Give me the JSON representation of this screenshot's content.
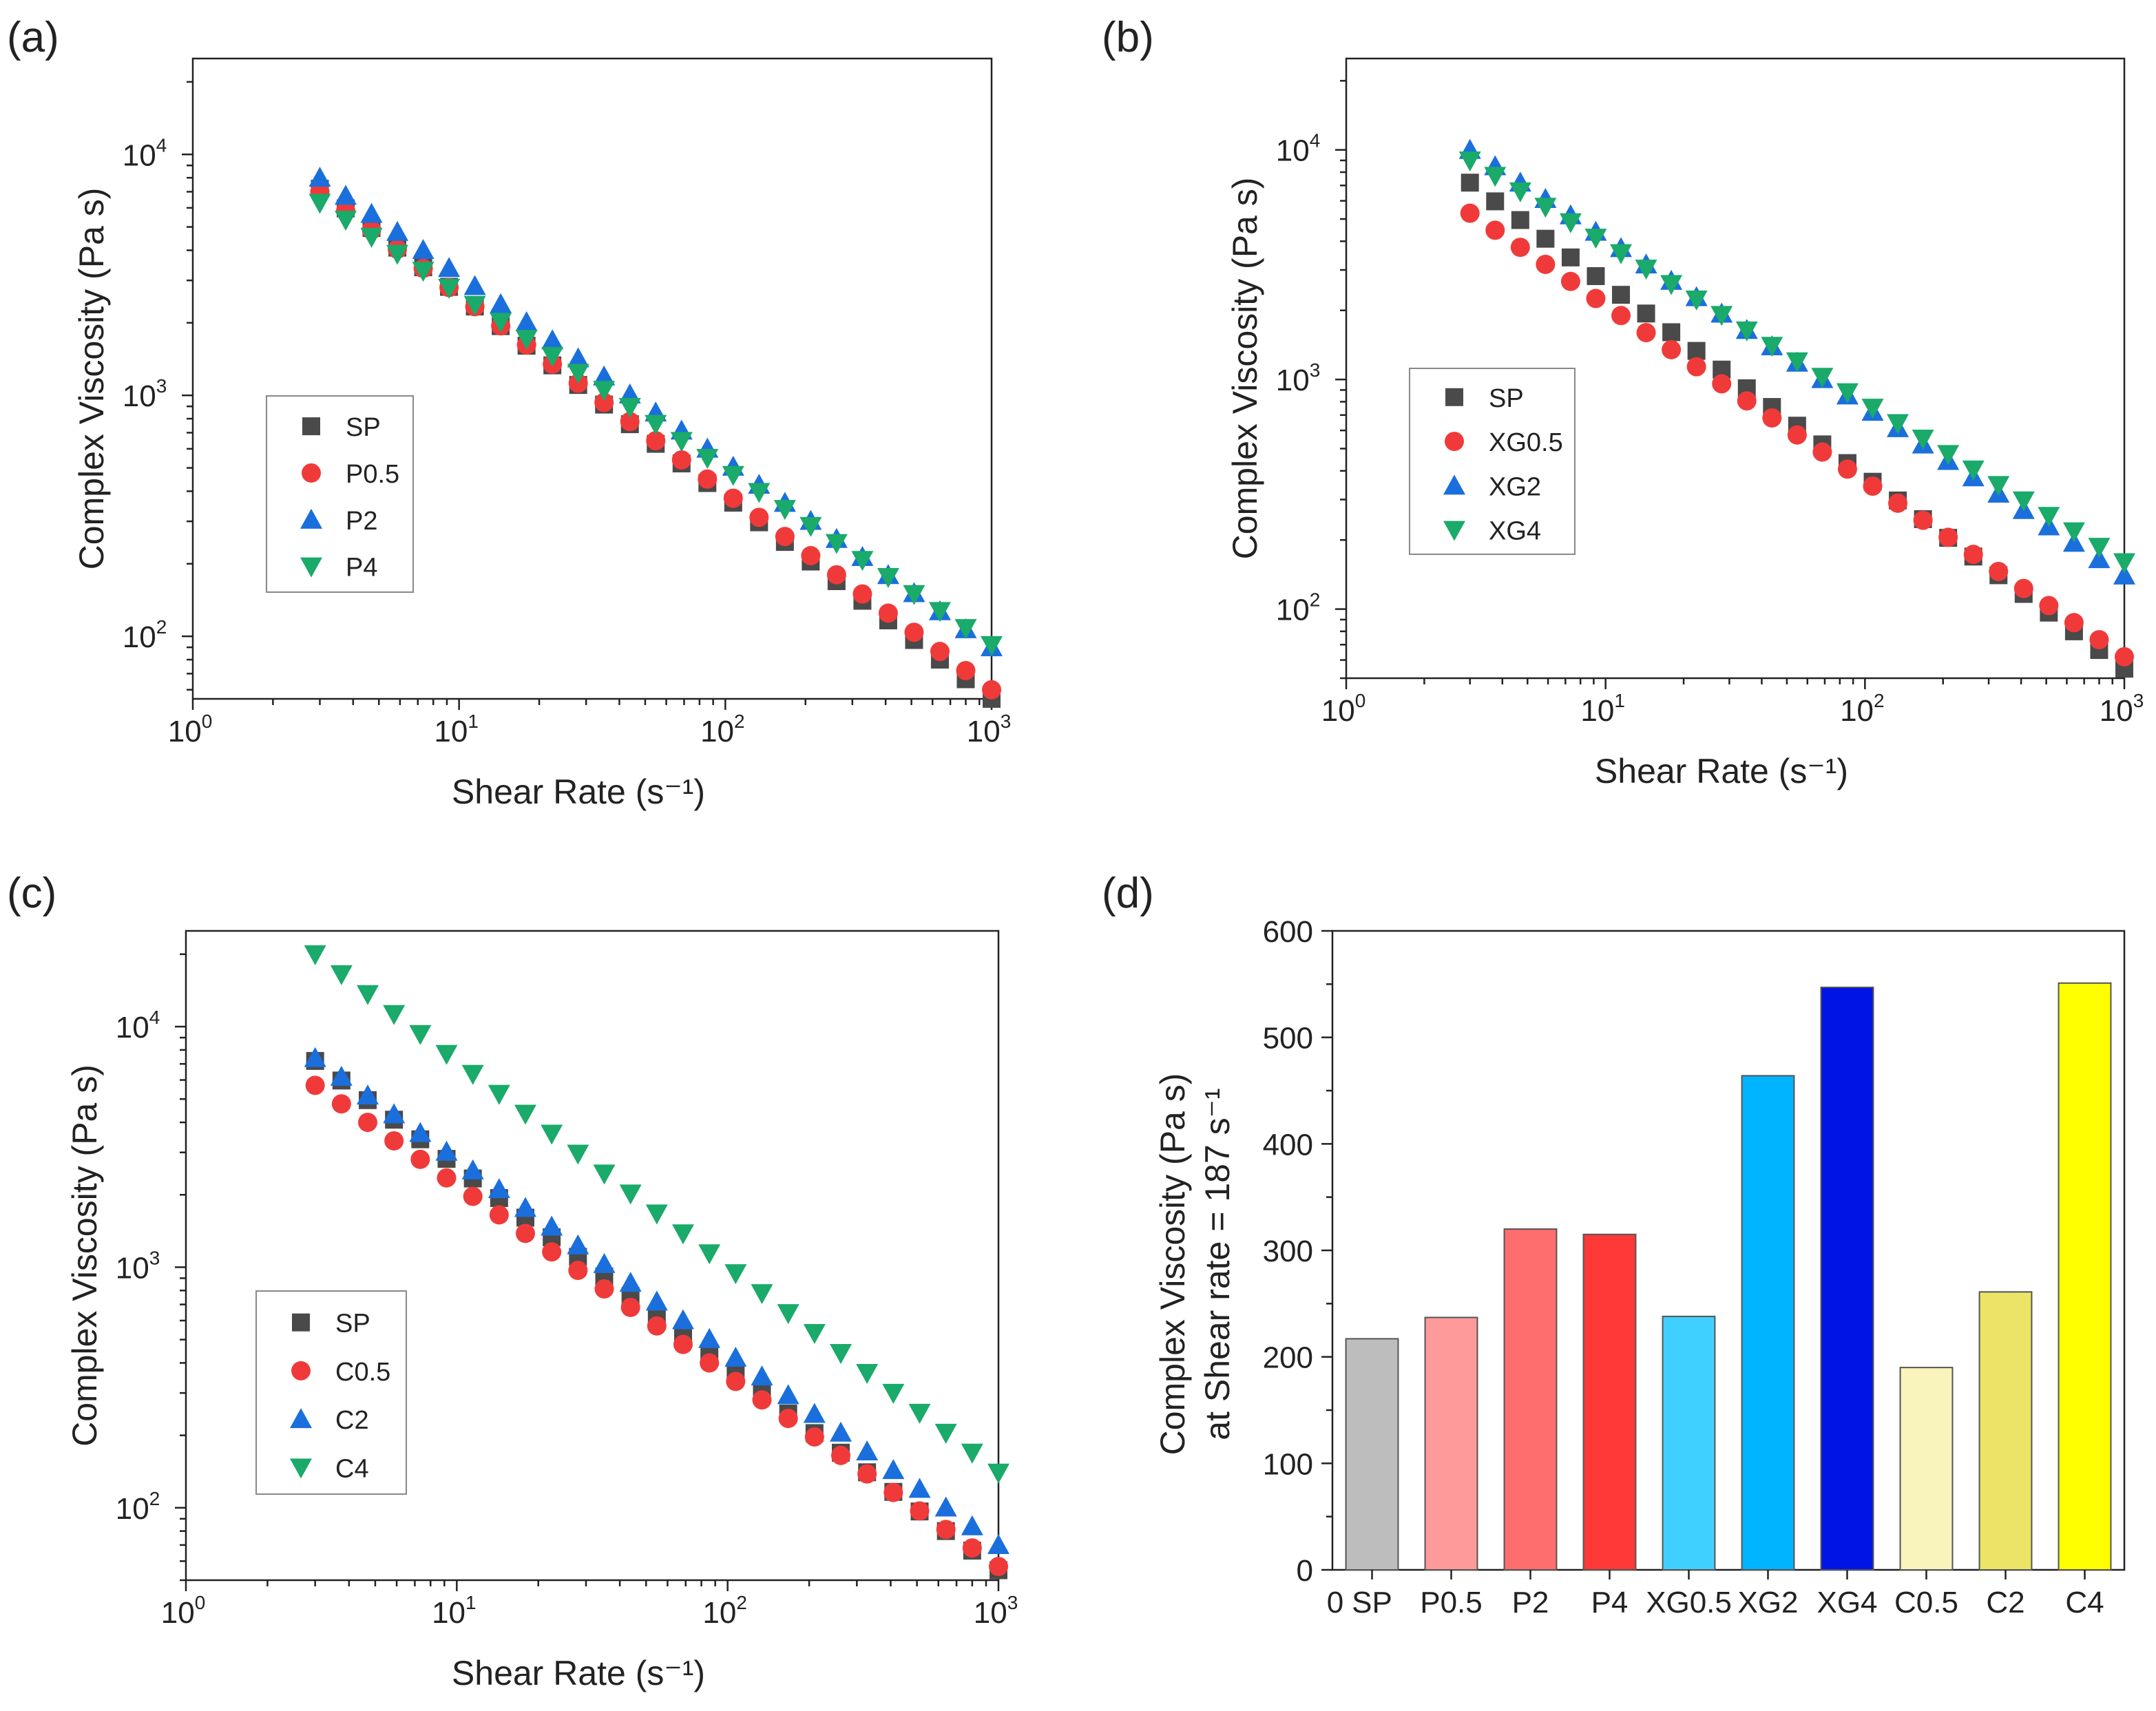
{
  "colors": {
    "SP": "#4a4a4a",
    "red": "#f03a3a",
    "blue": "#1a6fdc",
    "green": "#1aaa6a"
  },
  "chart_data": [
    {
      "panel": "(a)",
      "type": "scatter",
      "xscale": "log",
      "yscale": "log",
      "xlim": [
        1,
        1000
      ],
      "ylim": [
        55,
        25000
      ],
      "xlabel": "Shear Rate (s⁻¹)",
      "ylabel": "Complex Viscosity (Pa s)",
      "xticks": [
        {
          "base": "10",
          "exp": "0",
          "value": 1
        },
        {
          "base": "10",
          "exp": "1",
          "value": 10
        },
        {
          "base": "10",
          "exp": "2",
          "value": 100
        },
        {
          "base": "10",
          "exp": "3",
          "value": 1000
        }
      ],
      "yticks": [
        {
          "base": "10",
          "exp": "2",
          "value": 100
        },
        {
          "base": "10",
          "exp": "3",
          "value": 1000
        },
        {
          "base": "10",
          "exp": "4",
          "value": 10000
        }
      ],
      "legend_position": "center-left",
      "series": [
        {
          "name": "SP",
          "marker": "square",
          "color": "#4a4a4a",
          "v3": 7200,
          "v1000": 55
        },
        {
          "name": "P0.5",
          "marker": "circle",
          "color": "#f03a3a",
          "v3": 7000,
          "v1000": 60
        },
        {
          "name": "P2",
          "marker": "triangle-up",
          "color": "#1a6fdc",
          "v3": 8000,
          "v1000": 90
        },
        {
          "name": "P4",
          "marker": "triangle-down",
          "color": "#1aaa6a",
          "v3": 6300,
          "v1000": 92
        }
      ]
    },
    {
      "panel": "(b)",
      "type": "scatter",
      "xscale": "log",
      "yscale": "log",
      "xlim": [
        1,
        1000
      ],
      "ylim": [
        50,
        25000
      ],
      "xlabel": "Shear Rate (s⁻¹)",
      "ylabel": "Complex Viscosity (Pa s)",
      "xticks": [
        {
          "base": "10",
          "exp": "0",
          "value": 1
        },
        {
          "base": "10",
          "exp": "1",
          "value": 10
        },
        {
          "base": "10",
          "exp": "2",
          "value": 100
        },
        {
          "base": "10",
          "exp": "3",
          "value": 1000
        }
      ],
      "yticks": [
        {
          "base": "10",
          "exp": "2",
          "value": 100
        },
        {
          "base": "10",
          "exp": "3",
          "value": 1000
        },
        {
          "base": "10",
          "exp": "4",
          "value": 10000
        }
      ],
      "legend_position": "center-left",
      "series": [
        {
          "name": "SP",
          "marker": "square",
          "color": "#4a4a4a",
          "v3": 7200,
          "v1000": 55
        },
        {
          "name": "XG0.5",
          "marker": "circle",
          "color": "#f03a3a",
          "v3": 5300,
          "v1000": 62
        },
        {
          "name": "XG2",
          "marker": "triangle-up",
          "color": "#1a6fdc",
          "v3": 10000,
          "v1000": 140
        },
        {
          "name": "XG4",
          "marker": "triangle-down",
          "color": "#1aaa6a",
          "v3": 9000,
          "v1000": 160
        }
      ]
    },
    {
      "panel": "(c)",
      "type": "scatter",
      "xscale": "log",
      "yscale": "log",
      "xlim": [
        1,
        1000
      ],
      "ylim": [
        50,
        25000
      ],
      "xlabel": "Shear Rate (s⁻¹)",
      "ylabel": "Complex Viscosity (Pa s)",
      "xticks": [
        {
          "base": "10",
          "exp": "0",
          "value": 1
        },
        {
          "base": "10",
          "exp": "1",
          "value": 10
        },
        {
          "base": "10",
          "exp": "2",
          "value": 100
        },
        {
          "base": "10",
          "exp": "3",
          "value": 1000
        }
      ],
      "yticks": [
        {
          "base": "10",
          "exp": "2",
          "value": 100
        },
        {
          "base": "10",
          "exp": "3",
          "value": 1000
        },
        {
          "base": "10",
          "exp": "4",
          "value": 10000
        }
      ],
      "legend_position": "center-left",
      "series": [
        {
          "name": "SP",
          "marker": "square",
          "color": "#4a4a4a",
          "v3": 7200,
          "v1000": 55
        },
        {
          "name": "C0.5",
          "marker": "circle",
          "color": "#f03a3a",
          "v3": 5700,
          "v1000": 57
        },
        {
          "name": "C2",
          "marker": "triangle-up",
          "color": "#1a6fdc",
          "v3": 7400,
          "v1000": 70
        },
        {
          "name": "C4",
          "marker": "triangle-down",
          "color": "#1aaa6a",
          "v3": 20000,
          "v1000": 140
        }
      ]
    },
    {
      "panel": "(d)",
      "type": "bar",
      "ylim": [
        0,
        600
      ],
      "yticks": [
        0,
        100,
        200,
        300,
        400,
        500,
        600
      ],
      "ylabel": "Complex Viscosity (Pa s)",
      "ylabel2": "at Shear rate = 187 s⁻¹",
      "xlabel": "",
      "zero_label": "0",
      "categories": [
        "SP",
        "P0.5",
        "P2",
        "P4",
        "XG0.5",
        "XG2",
        "XG4",
        "C0.5",
        "C2",
        "C4"
      ],
      "values": [
        217,
        237,
        320,
        315,
        238,
        464,
        547,
        190,
        261,
        551
      ],
      "colors": [
        "#bdbdbd",
        "#ff9a9a",
        "#ff6e6e",
        "#ff3838",
        "#40d0ff",
        "#00b4ff",
        "#0014e6",
        "#f8f4bc",
        "#ece467",
        "#ffff00"
      ]
    }
  ]
}
